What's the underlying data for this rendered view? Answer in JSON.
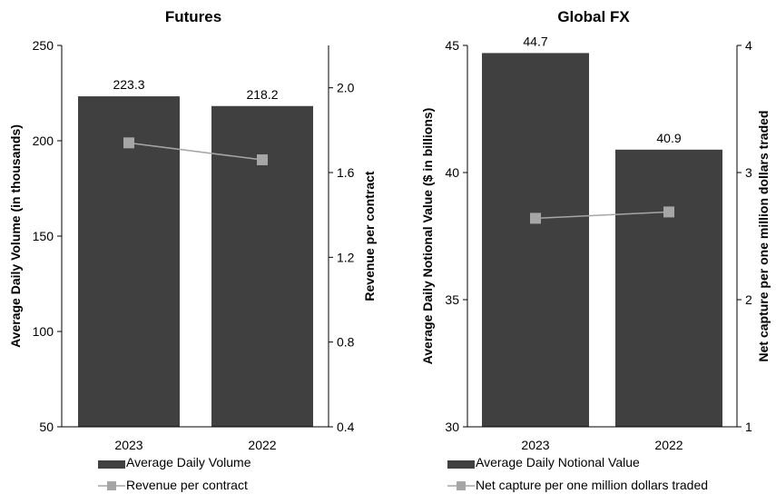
{
  "chart_data": [
    {
      "type": "bar",
      "title": "Futures",
      "categories": [
        "2023",
        "2022"
      ],
      "ylabel": "Average Daily Volume (in thousands)",
      "y2label": "Revenue per contract",
      "ylim": [
        50,
        250
      ],
      "yticks": [
        "50",
        "100",
        "150",
        "200",
        "250"
      ],
      "y2lim": [
        0.4,
        2.2
      ],
      "y2ticks": [
        "0.4",
        "0.8",
        "1.2",
        "1.6",
        "2.0"
      ],
      "series": [
        {
          "name": "Average Daily Volume",
          "kind": "bar",
          "axis": "left",
          "color": "#404040",
          "values": [
            223.3,
            218.2
          ],
          "labels": [
            "223.3",
            "218.2"
          ]
        },
        {
          "name": "Revenue per contract",
          "kind": "line",
          "axis": "right",
          "color": "#a6a6a6",
          "values": [
            1.74,
            1.66
          ]
        }
      ],
      "legend_position": "bottom",
      "grid": false
    },
    {
      "type": "bar",
      "title": "Global FX",
      "categories": [
        "2023",
        "2022"
      ],
      "ylabel": "Average Daily Notional Value ($ in billions)",
      "y2label": "Net capture per one million dollars traded",
      "ylim": [
        30,
        45
      ],
      "yticks": [
        "30",
        "35",
        "40",
        "45"
      ],
      "y2lim": [
        1,
        4
      ],
      "y2ticks": [
        "1",
        "2",
        "3",
        "4"
      ],
      "series": [
        {
          "name": "Average Daily Notional Value",
          "kind": "bar",
          "axis": "left",
          "color": "#404040",
          "values": [
            44.7,
            40.9
          ],
          "labels": [
            "44.7",
            "40.9"
          ]
        },
        {
          "name": "Net capture per one million dollars traded",
          "kind": "line",
          "axis": "right",
          "color": "#a6a6a6",
          "values": [
            2.64,
            2.69
          ]
        }
      ],
      "legend_position": "bottom",
      "grid": false
    }
  ]
}
